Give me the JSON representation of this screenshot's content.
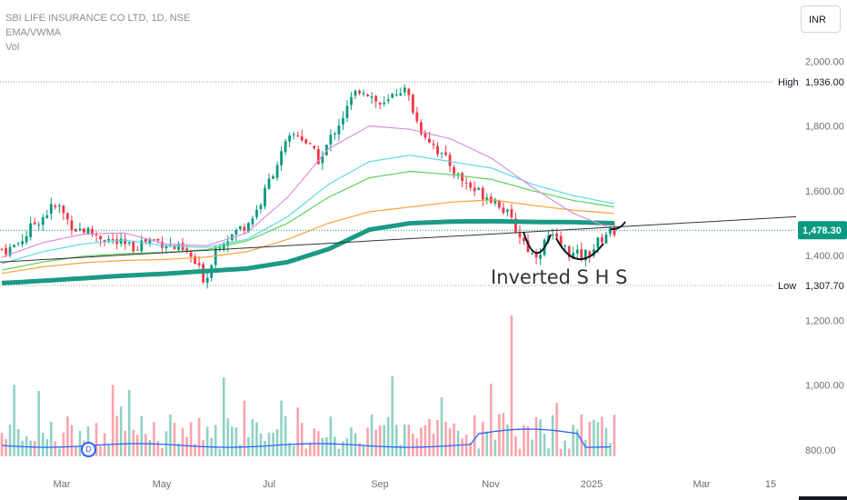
{
  "legend": {
    "symbol": "SBI LIFE INSURANCE CO LTD, 1D, NSE",
    "indicator": "EMA/VWMA",
    "volume": "Vol"
  },
  "currency": "INR",
  "annotation": "Inverted S H S",
  "colors": {
    "up": "#089981",
    "down": "#f23645",
    "ema_thick": "#1b9a84",
    "ema_orange": "#f7a23c",
    "ema_green": "#5ad35a",
    "ema_cyan": "#5ad9e6",
    "ema_violet": "#d98fe0",
    "trendline": "#333333",
    "vwma": "#2962ff"
  },
  "chart_data": {
    "type": "candlestick",
    "title": "SBI LIFE INSURANCE CO LTD, 1D, NSE",
    "price_axis": {
      "ticks": [
        "2,000.00",
        "1,800.00",
        "1,600.00",
        "1,400.00",
        "1,200.00",
        "1,000.00",
        "800.00"
      ],
      "ylim": [
        780,
        2060
      ]
    },
    "time_axis": [
      "Mar",
      "May",
      "Jul",
      "Sep",
      "Nov",
      "2025",
      "Mar",
      "15"
    ],
    "labels": {
      "high": {
        "label": "High",
        "value": "1,936.00"
      },
      "last": {
        "value": "1,478.30"
      },
      "low": {
        "label": "Low",
        "value": "1,307.70"
      }
    },
    "close_path": [
      1420,
      1420,
      1440,
      1465,
      1500,
      1520,
      1545,
      1550,
      1510,
      1485,
      1480,
      1470,
      1460,
      1450,
      1440,
      1430,
      1425,
      1440,
      1450,
      1445,
      1440,
      1425,
      1415,
      1400,
      1360,
      1320,
      1420,
      1450,
      1460,
      1480,
      1500,
      1530,
      1580,
      1650,
      1700,
      1750,
      1780,
      1760,
      1720,
      1690,
      1750,
      1800,
      1840,
      1890,
      1920,
      1900,
      1870,
      1860,
      1900,
      1920,
      1880,
      1800,
      1770,
      1740,
      1700,
      1680,
      1640,
      1620,
      1600,
      1590,
      1580,
      1560,
      1520,
      1480,
      1440,
      1400,
      1420,
      1460,
      1440,
      1420,
      1400,
      1400,
      1410,
      1440,
      1470,
      1478
    ],
    "ema_series": [
      {
        "key": "ema_thick",
        "values": [
          1315,
          1322,
          1330,
          1338,
          1344,
          1352,
          1360,
          1380,
          1420,
          1480,
          1500,
          1505,
          1506,
          1504,
          1503,
          1500
        ]
      },
      {
        "key": "ema_orange",
        "values": [
          1345,
          1365,
          1378,
          1385,
          1388,
          1395,
          1412,
          1450,
          1500,
          1535,
          1550,
          1565,
          1572,
          1555,
          1540,
          1530
        ]
      },
      {
        "key": "ema_green",
        "values": [
          1355,
          1380,
          1398,
          1406,
          1410,
          1418,
          1445,
          1500,
          1580,
          1640,
          1660,
          1650,
          1635,
          1600,
          1570,
          1550
        ]
      },
      {
        "key": "ema_cyan",
        "values": [
          1375,
          1412,
          1436,
          1448,
          1430,
          1425,
          1450,
          1520,
          1620,
          1690,
          1710,
          1690,
          1670,
          1620,
          1585,
          1560
        ]
      },
      {
        "key": "ema_violet",
        "values": [
          1395,
          1440,
          1466,
          1470,
          1436,
          1430,
          1470,
          1580,
          1730,
          1800,
          1790,
          1760,
          1700,
          1610,
          1530,
          1480
        ]
      }
    ],
    "trendline": {
      "from": 1380,
      "to": 1520
    },
    "volume_baseline": "800.00"
  }
}
